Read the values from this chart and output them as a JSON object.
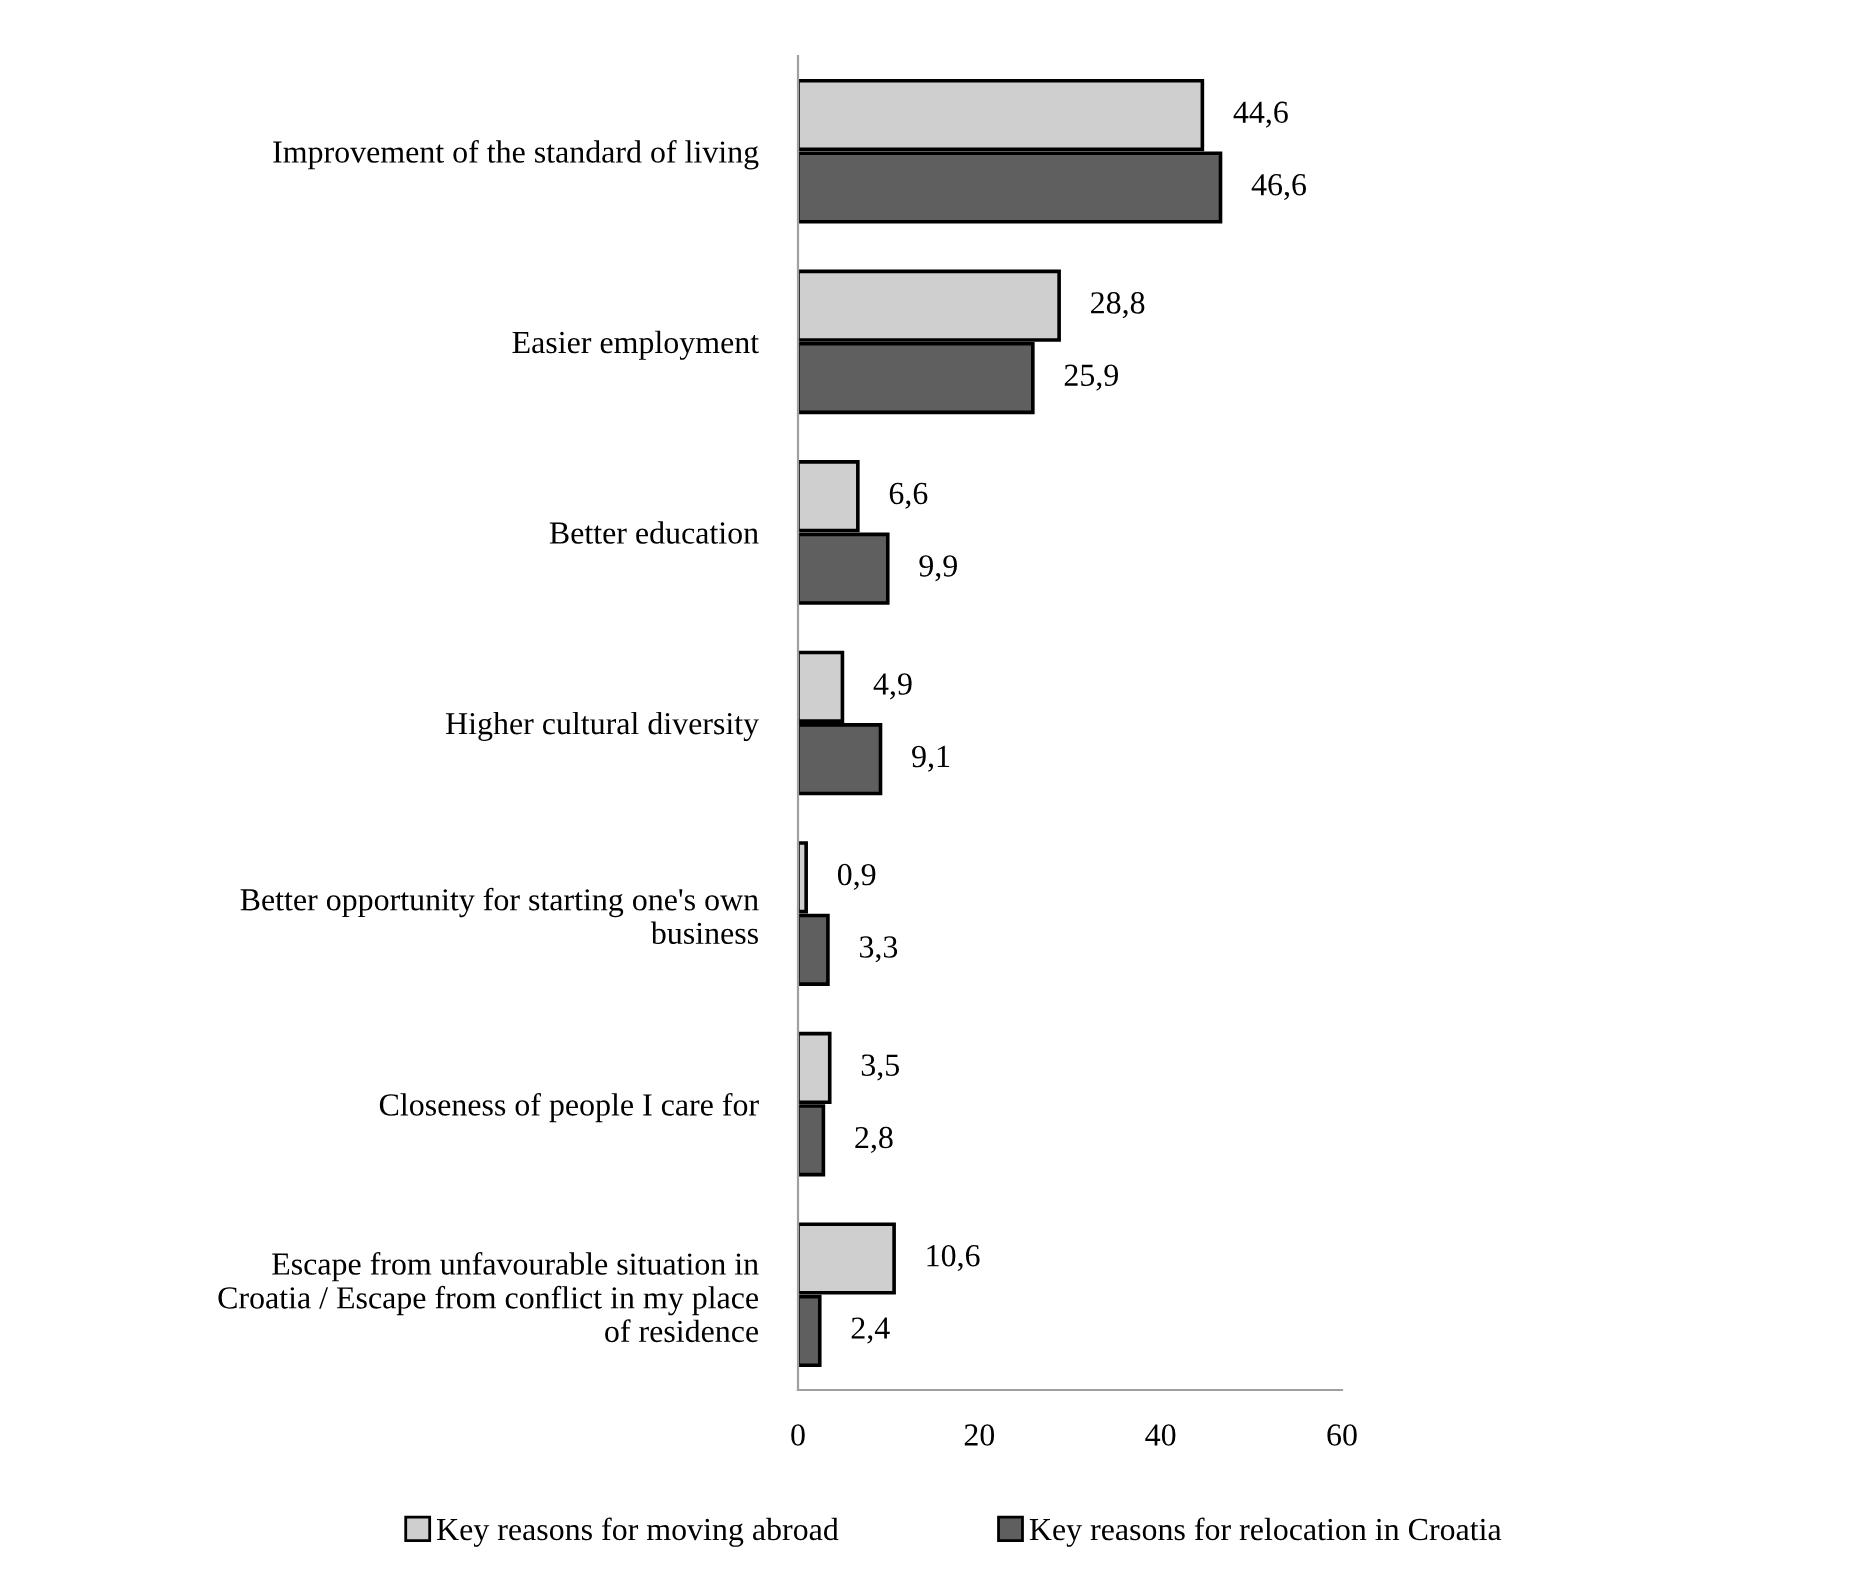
{
  "chart_data": {
    "type": "bar",
    "orientation": "horizontal",
    "categories": [
      "Improvement of the standard of living",
      "Easier employment",
      "Better education",
      "Higher cultural diversity",
      "Better opportunity for starting one's own\nbusiness",
      "Closeness of people I care for",
      "Escape from unfavourable situation in\nCroatia / Escape from conflict in my place\nof residence"
    ],
    "series": [
      {
        "name": "Key reasons for moving abroad",
        "color": "#cfcfcf",
        "values": [
          44.6,
          28.8,
          6.6,
          4.9,
          0.9,
          3.5,
          10.6
        ],
        "value_labels": [
          "44,6",
          "28,8",
          "6,6",
          "4,9",
          "0,9",
          "3,5",
          "10,6"
        ]
      },
      {
        "name": "Key reasons for relocation in Croatia",
        "color": "#5f5f5f",
        "values": [
          46.6,
          25.9,
          9.9,
          9.1,
          3.3,
          2.8,
          2.4
        ],
        "value_labels": [
          "46,6",
          "25,9",
          "9,9",
          "9,1",
          "3,3",
          "2,8",
          "2,4"
        ]
      }
    ],
    "xlim": [
      0,
      60
    ],
    "xticks": [
      0,
      20,
      40,
      60
    ],
    "grid": false,
    "legend": "bottom"
  }
}
